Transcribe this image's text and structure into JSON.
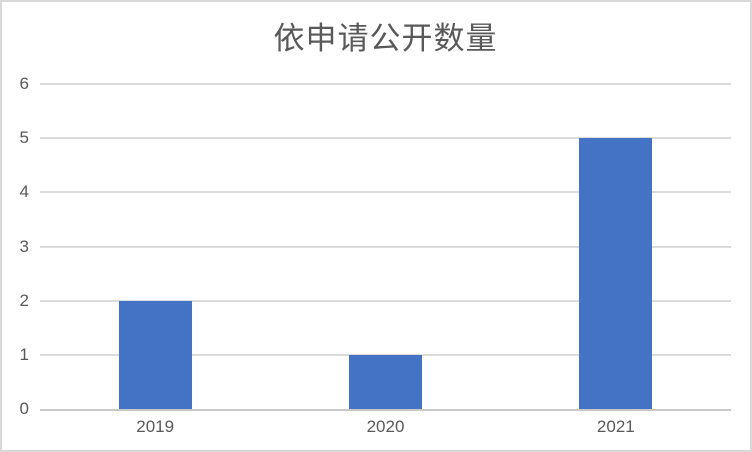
{
  "chart_data": {
    "type": "bar",
    "title": "依申请公开数量",
    "categories": [
      "2019",
      "2020",
      "2021"
    ],
    "values": [
      2,
      1,
      5
    ],
    "xlabel": "",
    "ylabel": "",
    "ylim": [
      0,
      6
    ],
    "yticks": [
      0,
      1,
      2,
      3,
      4,
      5,
      6
    ],
    "grid": true,
    "legend": "none",
    "colors": {
      "bar": "#4472C4",
      "text": "#595959",
      "gridline": "#DBDBDB",
      "axis": "#C9C9C9",
      "border": "#D8D8D8",
      "background": "#FFFFFF"
    }
  }
}
